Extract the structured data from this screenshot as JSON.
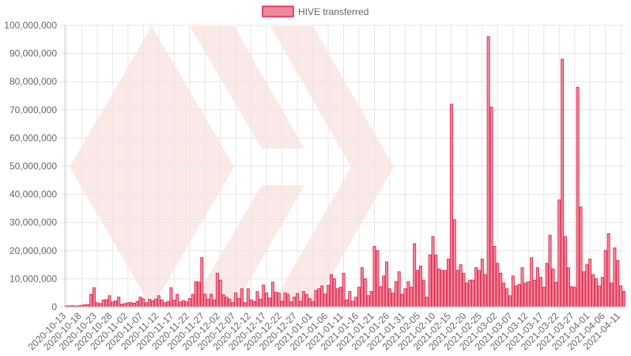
{
  "chart_data": {
    "type": "bar",
    "title": "",
    "xlabel": "",
    "ylabel": "",
    "legend": {
      "position": "top",
      "entries": [
        "HIVE transferred"
      ]
    },
    "grid": true,
    "ylim": [
      0,
      100000000
    ],
    "y_ticks": [
      0,
      10000000,
      20000000,
      30000000,
      40000000,
      50000000,
      60000000,
      70000000,
      80000000,
      90000000,
      100000000
    ],
    "y_tick_labels": [
      "0",
      "10,000,000",
      "20,000,000",
      "30,000,000",
      "40,000,000",
      "50,000,000",
      "60,000,000",
      "70,000,000",
      "80,000,000",
      "90,000,000",
      "100,000,000"
    ],
    "x_tick_labels": [
      "2020-10-13",
      "2020-10-18",
      "2020-10-23",
      "2020-10-28",
      "2020-11-02",
      "2020-11-07",
      "2020-11-12",
      "2020-11-17",
      "2020-11-22",
      "2020-11-27",
      "2020-12-02",
      "2020-12-07",
      "2020-12-12",
      "2020-12-17",
      "2020-12-22",
      "2020-12-27",
      "2021-01-01",
      "2021-01-06",
      "2021-01-11",
      "2021-01-16",
      "2021-01-21",
      "2021-01-26",
      "2021-01-31",
      "2021-02-05",
      "2021-02-10",
      "2021-02-15",
      "2021-02-20",
      "2021-02-25",
      "2021-03-02",
      "2021-03-07",
      "2021-03-12",
      "2021-03-17",
      "2021-03-22",
      "2021-03-27",
      "2021-04-01",
      "2021-04-06",
      "2021-04-11"
    ],
    "x_start": "2020-10-13",
    "x_end": "2021-04-13",
    "colors": {
      "bar_fill": "#f0879a",
      "bar_stroke": "#e0224c",
      "grid": "#e6e6e6",
      "axis": "#cccccc",
      "watermark": "#fbe9e7"
    },
    "series": [
      {
        "name": "HIVE transferred",
        "values": [
          400000,
          300000,
          500000,
          300000,
          400000,
          600000,
          800000,
          900000,
          4500000,
          6800000,
          1500000,
          1200000,
          2500000,
          2600000,
          4000000,
          1800000,
          2200000,
          3500000,
          1000000,
          1200000,
          1500000,
          1600000,
          1300000,
          2000000,
          3500000,
          2900000,
          1500000,
          2700000,
          2200000,
          2800000,
          4000000,
          2500000,
          1500000,
          2000000,
          6800000,
          2400000,
          4500000,
          1800000,
          2300000,
          1800000,
          3000000,
          4500000,
          9000000,
          8800000,
          17500000,
          4500000,
          2800000,
          4500000,
          2500000,
          12000000,
          9500000,
          4300000,
          3500000,
          2800000,
          1500000,
          5000000,
          3000000,
          6500000,
          1500000,
          6500000,
          2500000,
          2000000,
          5500000,
          2800000,
          7800000,
          5000000,
          3200000,
          8800000,
          5200000,
          5000000,
          2000000,
          5000000,
          4500000,
          1800000,
          3500000,
          4800000,
          2000000,
          5500000,
          4500000,
          3000000,
          1900000,
          5800000,
          6500000,
          7500000,
          4600000,
          7700000,
          11500000,
          10000000,
          6500000,
          7000000,
          12000000,
          2500000,
          5500000,
          2000000,
          3500000,
          7000000,
          14000000,
          10000000,
          4000000,
          5500000,
          21500000,
          20000000,
          7200000,
          11000000,
          16000000,
          6500000,
          5000000,
          9000000,
          12500000,
          4500000,
          6500000,
          9000000,
          7000000,
          22500000,
          13000000,
          14500000,
          9500000,
          3500000,
          18500000,
          25000000,
          18500000,
          13500000,
          13000000,
          13000000,
          17000000,
          72000000,
          31000000,
          13000000,
          15000000,
          12000000,
          8500000,
          9500000,
          9500000,
          14000000,
          13000000,
          17000000,
          11500000,
          96000000,
          71000000,
          21500000,
          15500000,
          12000000,
          8500000,
          6500000,
          4000000,
          11000000,
          7500000,
          8000000,
          14000000,
          8500000,
          9000000,
          17500000,
          9500000,
          14000000,
          10500000,
          7000000,
          15500000,
          25500000,
          13500000,
          8800000,
          38000000,
          88000000,
          25000000,
          14000000,
          7200000,
          7000000,
          78000000,
          35500000,
          12500000,
          15000000,
          17000000,
          11500000,
          10000000,
          7500000,
          10500000,
          20000000,
          26000000,
          8500000,
          21000000,
          16500000,
          7500000,
          5500000
        ]
      }
    ]
  }
}
